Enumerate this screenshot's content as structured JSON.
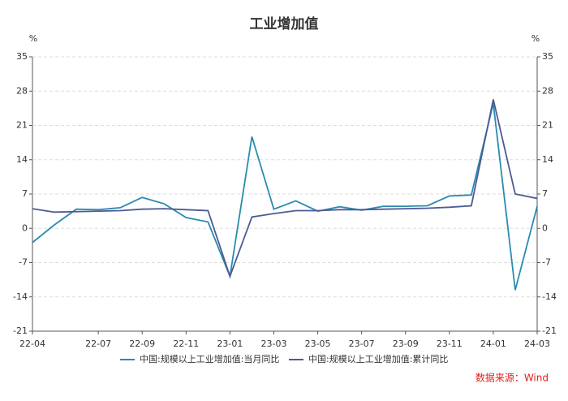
{
  "chart_data": {
    "type": "line",
    "title": "工业增加值",
    "ylabel": "%",
    "y2label": "%",
    "categories": [
      "22-04",
      null,
      null,
      "22-07",
      null,
      "22-09",
      null,
      "22-11",
      null,
      "23-01",
      null,
      "23-03",
      null,
      "23-05",
      null,
      "23-07",
      null,
      "23-09",
      null,
      "23-11",
      null,
      "24-01",
      null,
      "24-03"
    ],
    "series": [
      {
        "name": "中国:规模以上工业增加值:当月同比",
        "color": "#2a8bb0",
        "values": [
          -2.9,
          0.7,
          3.9,
          3.8,
          4.2,
          6.3,
          5.0,
          2.2,
          1.3,
          -9.8,
          18.7,
          3.9,
          5.6,
          3.5,
          4.4,
          3.7,
          4.5,
          4.5,
          4.6,
          6.6,
          6.8,
          25.5,
          -12.6,
          4.5
        ]
      },
      {
        "name": "中国:规模以上工业增加值:累计同比",
        "color": "#4f5a92",
        "axis": "y2",
        "values": [
          4.0,
          3.3,
          3.4,
          3.5,
          3.6,
          3.9,
          4.0,
          3.8,
          3.6,
          -9.8,
          2.3,
          3.0,
          3.6,
          3.6,
          3.8,
          3.8,
          3.9,
          4.0,
          4.1,
          4.3,
          4.6,
          26.3,
          7.0,
          6.1
        ]
      }
    ],
    "ylim": [
      -21,
      35
    ],
    "yticks": [
      -21,
      -14,
      -7,
      0,
      7,
      14,
      21,
      28,
      35
    ],
    "y2lim": [
      -21,
      35
    ],
    "y2ticks": [
      -21,
      -14,
      -7,
      0,
      7,
      14,
      21,
      28,
      35
    ],
    "grid": true,
    "legend": "bottom",
    "source": "数据来源：Wind",
    "source_color": "#e0201b"
  }
}
